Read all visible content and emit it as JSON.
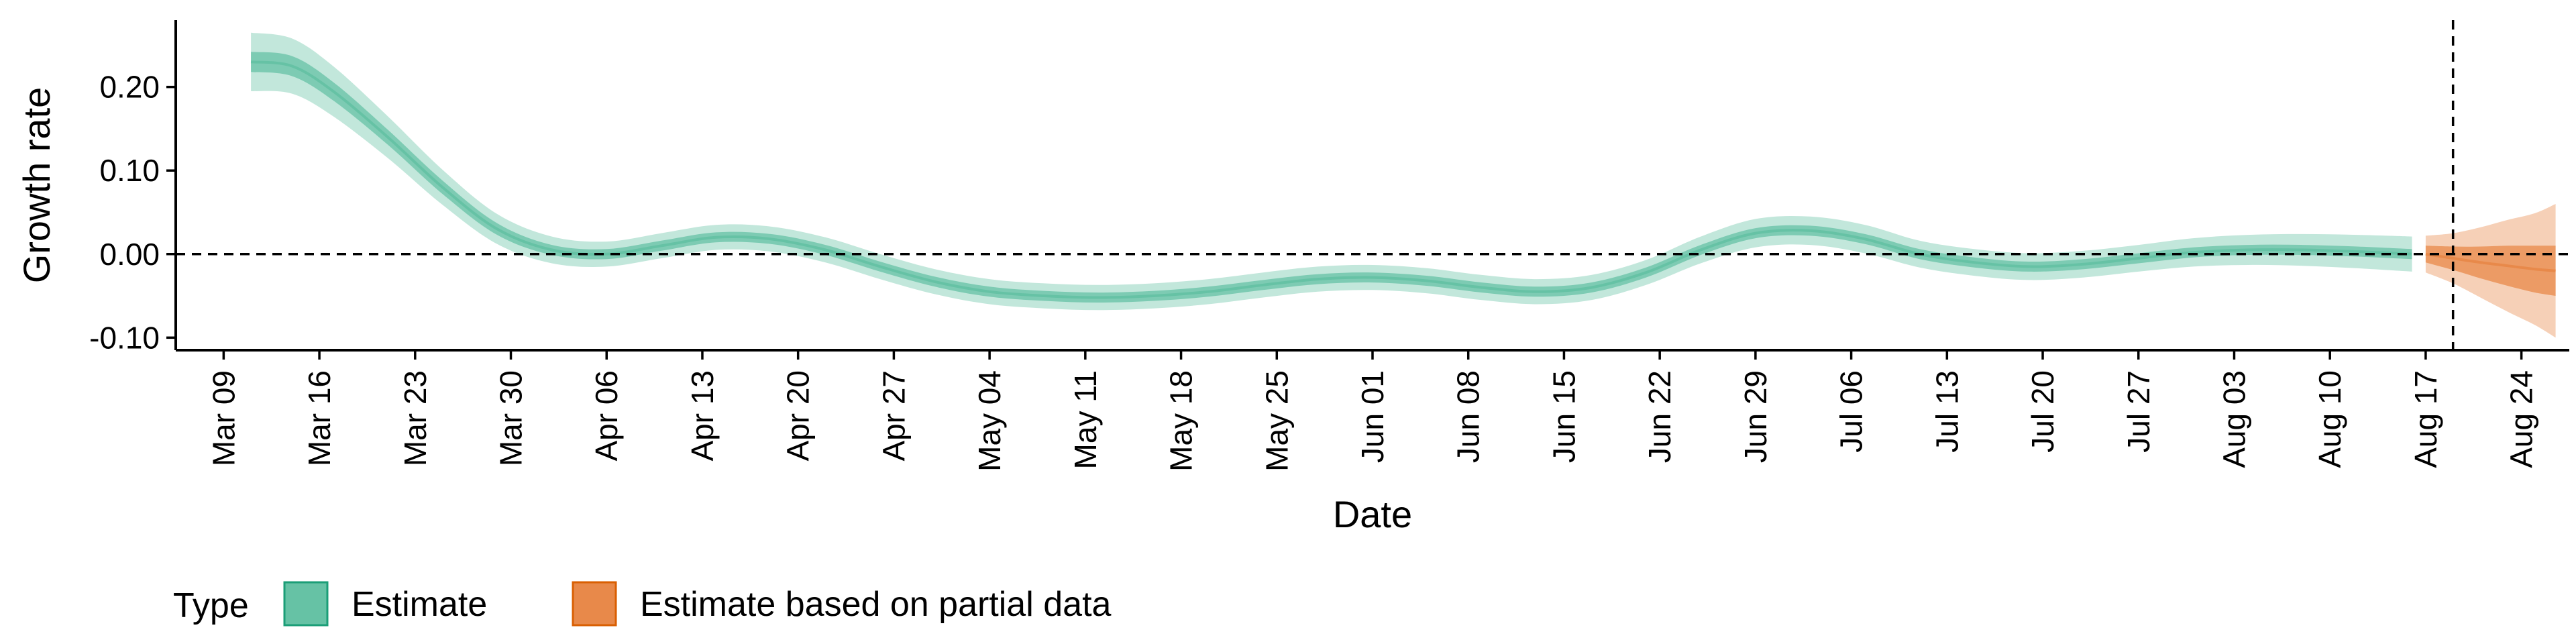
{
  "chart_data": {
    "type": "area",
    "xlabel": "Date",
    "ylabel": "Growth rate",
    "x_ticks": [
      "Mar 09",
      "Mar 16",
      "Mar 23",
      "Mar 30",
      "Apr 06",
      "Apr 13",
      "Apr 20",
      "Apr 27",
      "May 04",
      "May 11",
      "May 18",
      "May 25",
      "Jun 01",
      "Jun 08",
      "Jun 15",
      "Jun 22",
      "Jun 29",
      "Jul 06",
      "Jul 13",
      "Jul 20",
      "Jul 27",
      "Aug 03",
      "Aug 10",
      "Aug 17",
      "Aug 24"
    ],
    "y_ticks": [
      {
        "value": 0.2,
        "label": "0.20"
      },
      {
        "value": 0.1,
        "label": "0.10"
      },
      {
        "value": 0.0,
        "label": "0.00"
      },
      {
        "value": -0.1,
        "label": "-0.10"
      }
    ],
    "ylim": [
      -0.115,
      0.28
    ],
    "xlim_days": [
      -3.5,
      171.5
    ],
    "grid": false,
    "reference_lines": {
      "horizontal_y": 0.0,
      "vertical_date": "Aug 19"
    },
    "legend": {
      "title": "Type",
      "position": "bottom-left",
      "entries": [
        {
          "label": "Estimate",
          "color": "#66C2A5"
        },
        {
          "label": "Estimate based on partial data",
          "color": "#E8894A"
        }
      ]
    },
    "series": [
      {
        "name": "Estimate",
        "color": "#66C2A5",
        "x_days": [
          2,
          5,
          8,
          12,
          16,
          20,
          24,
          28,
          32,
          36,
          40,
          44,
          48,
          52,
          56,
          60,
          64,
          68,
          72,
          76,
          80,
          84,
          88,
          92,
          96,
          100,
          104,
          108,
          112,
          116,
          120,
          124,
          128,
          132,
          136,
          140,
          144,
          148,
          152,
          156,
          160
        ],
        "median": [
          0.23,
          0.225,
          0.195,
          0.14,
          0.08,
          0.03,
          0.005,
          0.0,
          0.01,
          0.02,
          0.018,
          0.005,
          -0.015,
          -0.033,
          -0.045,
          -0.05,
          -0.052,
          -0.05,
          -0.045,
          -0.037,
          -0.03,
          -0.028,
          -0.032,
          -0.04,
          -0.045,
          -0.04,
          -0.022,
          0.005,
          0.025,
          0.028,
          0.018,
          0.0,
          -0.01,
          -0.015,
          -0.012,
          -0.005,
          0.002,
          0.005,
          0.005,
          0.003,
          0.0
        ],
        "ci50": [
          0.012,
          0.012,
          0.011,
          0.009,
          0.008,
          0.007,
          0.006,
          0.006,
          0.006,
          0.006,
          0.006,
          0.006,
          0.006,
          0.006,
          0.006,
          0.006,
          0.006,
          0.006,
          0.006,
          0.006,
          0.006,
          0.006,
          0.006,
          0.006,
          0.006,
          0.006,
          0.006,
          0.006,
          0.006,
          0.006,
          0.006,
          0.006,
          0.006,
          0.006,
          0.006,
          0.006,
          0.006,
          0.006,
          0.006,
          0.006,
          0.006
        ],
        "ci90": [
          0.035,
          0.033,
          0.03,
          0.025,
          0.021,
          0.018,
          0.016,
          0.015,
          0.015,
          0.015,
          0.015,
          0.015,
          0.015,
          0.015,
          0.015,
          0.015,
          0.015,
          0.015,
          0.015,
          0.015,
          0.015,
          0.015,
          0.015,
          0.015,
          0.015,
          0.015,
          0.015,
          0.016,
          0.017,
          0.017,
          0.017,
          0.016,
          0.016,
          0.016,
          0.016,
          0.016,
          0.017,
          0.018,
          0.019,
          0.02,
          0.021
        ]
      },
      {
        "name": "Estimate based on partial data",
        "color": "#E8894A",
        "x_days": [
          161,
          163,
          165,
          167,
          169,
          170.5
        ],
        "median": [
          0.0,
          -0.005,
          -0.01,
          -0.014,
          -0.018,
          -0.02
        ],
        "ci50": [
          0.01,
          0.014,
          0.019,
          0.024,
          0.028,
          0.03
        ],
        "ci90": [
          0.022,
          0.03,
          0.042,
          0.055,
          0.067,
          0.08
        ]
      }
    ]
  }
}
